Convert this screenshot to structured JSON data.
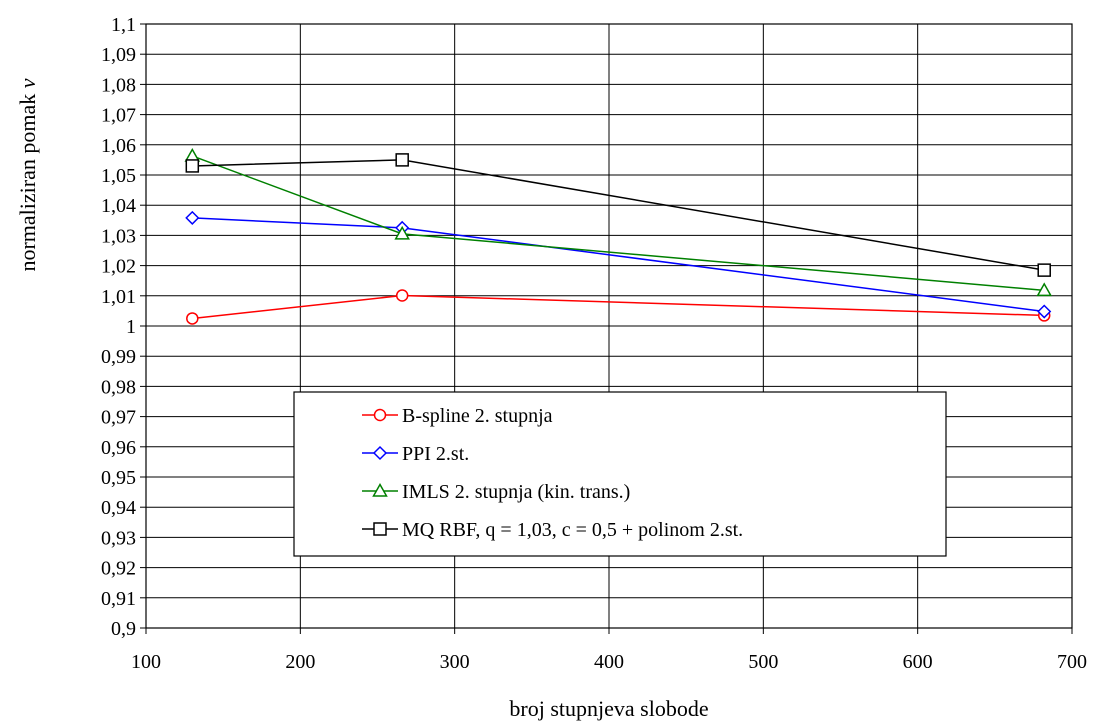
{
  "chart_data": {
    "type": "line",
    "title": "",
    "xlabel": "broj stupnjeva slobode",
    "ylabel_prefix": "normaliziran pomak ",
    "ylabel_var": "v",
    "xlim": [
      100,
      700
    ],
    "ylim": [
      0.9,
      1.1
    ],
    "x_ticks": [
      100,
      200,
      300,
      400,
      500,
      600,
      700
    ],
    "x_tick_labels": [
      "100",
      "200",
      "300",
      "400",
      "500",
      "600",
      "700"
    ],
    "y_ticks": [
      0.9,
      0.91,
      0.92,
      0.93,
      0.94,
      0.95,
      0.96,
      0.97,
      0.98,
      0.99,
      1.0,
      1.01,
      1.02,
      1.03,
      1.04,
      1.05,
      1.06,
      1.07,
      1.08,
      1.09,
      1.1
    ],
    "y_tick_labels": [
      "0,9",
      "0,91",
      "0,92",
      "0,93",
      "0,94",
      "0,95",
      "0,96",
      "0,97",
      "0,98",
      "0,99",
      "1",
      "1,01",
      "1,02",
      "1,03",
      "1,04",
      "1,05",
      "1,06",
      "1,07",
      "1,08",
      "1,09",
      "1,1"
    ],
    "grid": true,
    "legend_position": "lower-center",
    "series": [
      {
        "name": "B-spline 2. stupnja",
        "color": "#ff0000",
        "marker": "circle",
        "x": [
          130,
          266,
          682
        ],
        "y": [
          1.0025,
          1.0101,
          1.0035
        ]
      },
      {
        "name": "PPI  2.st.",
        "color": "#0000ff",
        "marker": "diamond",
        "x": [
          130,
          266,
          682
        ],
        "y": [
          1.0358,
          1.0325,
          1.0048
        ]
      },
      {
        "name": "IMLS 2. stupnja (kin. trans.)",
        "color": "#008000",
        "marker": "triangle",
        "x": [
          130,
          266,
          682
        ],
        "y": [
          1.0563,
          1.0305,
          1.0118
        ]
      },
      {
        "name": "MQ RBF, q = 1,03, c = 0,5 + polinom 2.st.",
        "color": "#000000",
        "marker": "square",
        "x": [
          130,
          266,
          682
        ],
        "y": [
          1.053,
          1.055,
          1.0185
        ]
      }
    ]
  }
}
